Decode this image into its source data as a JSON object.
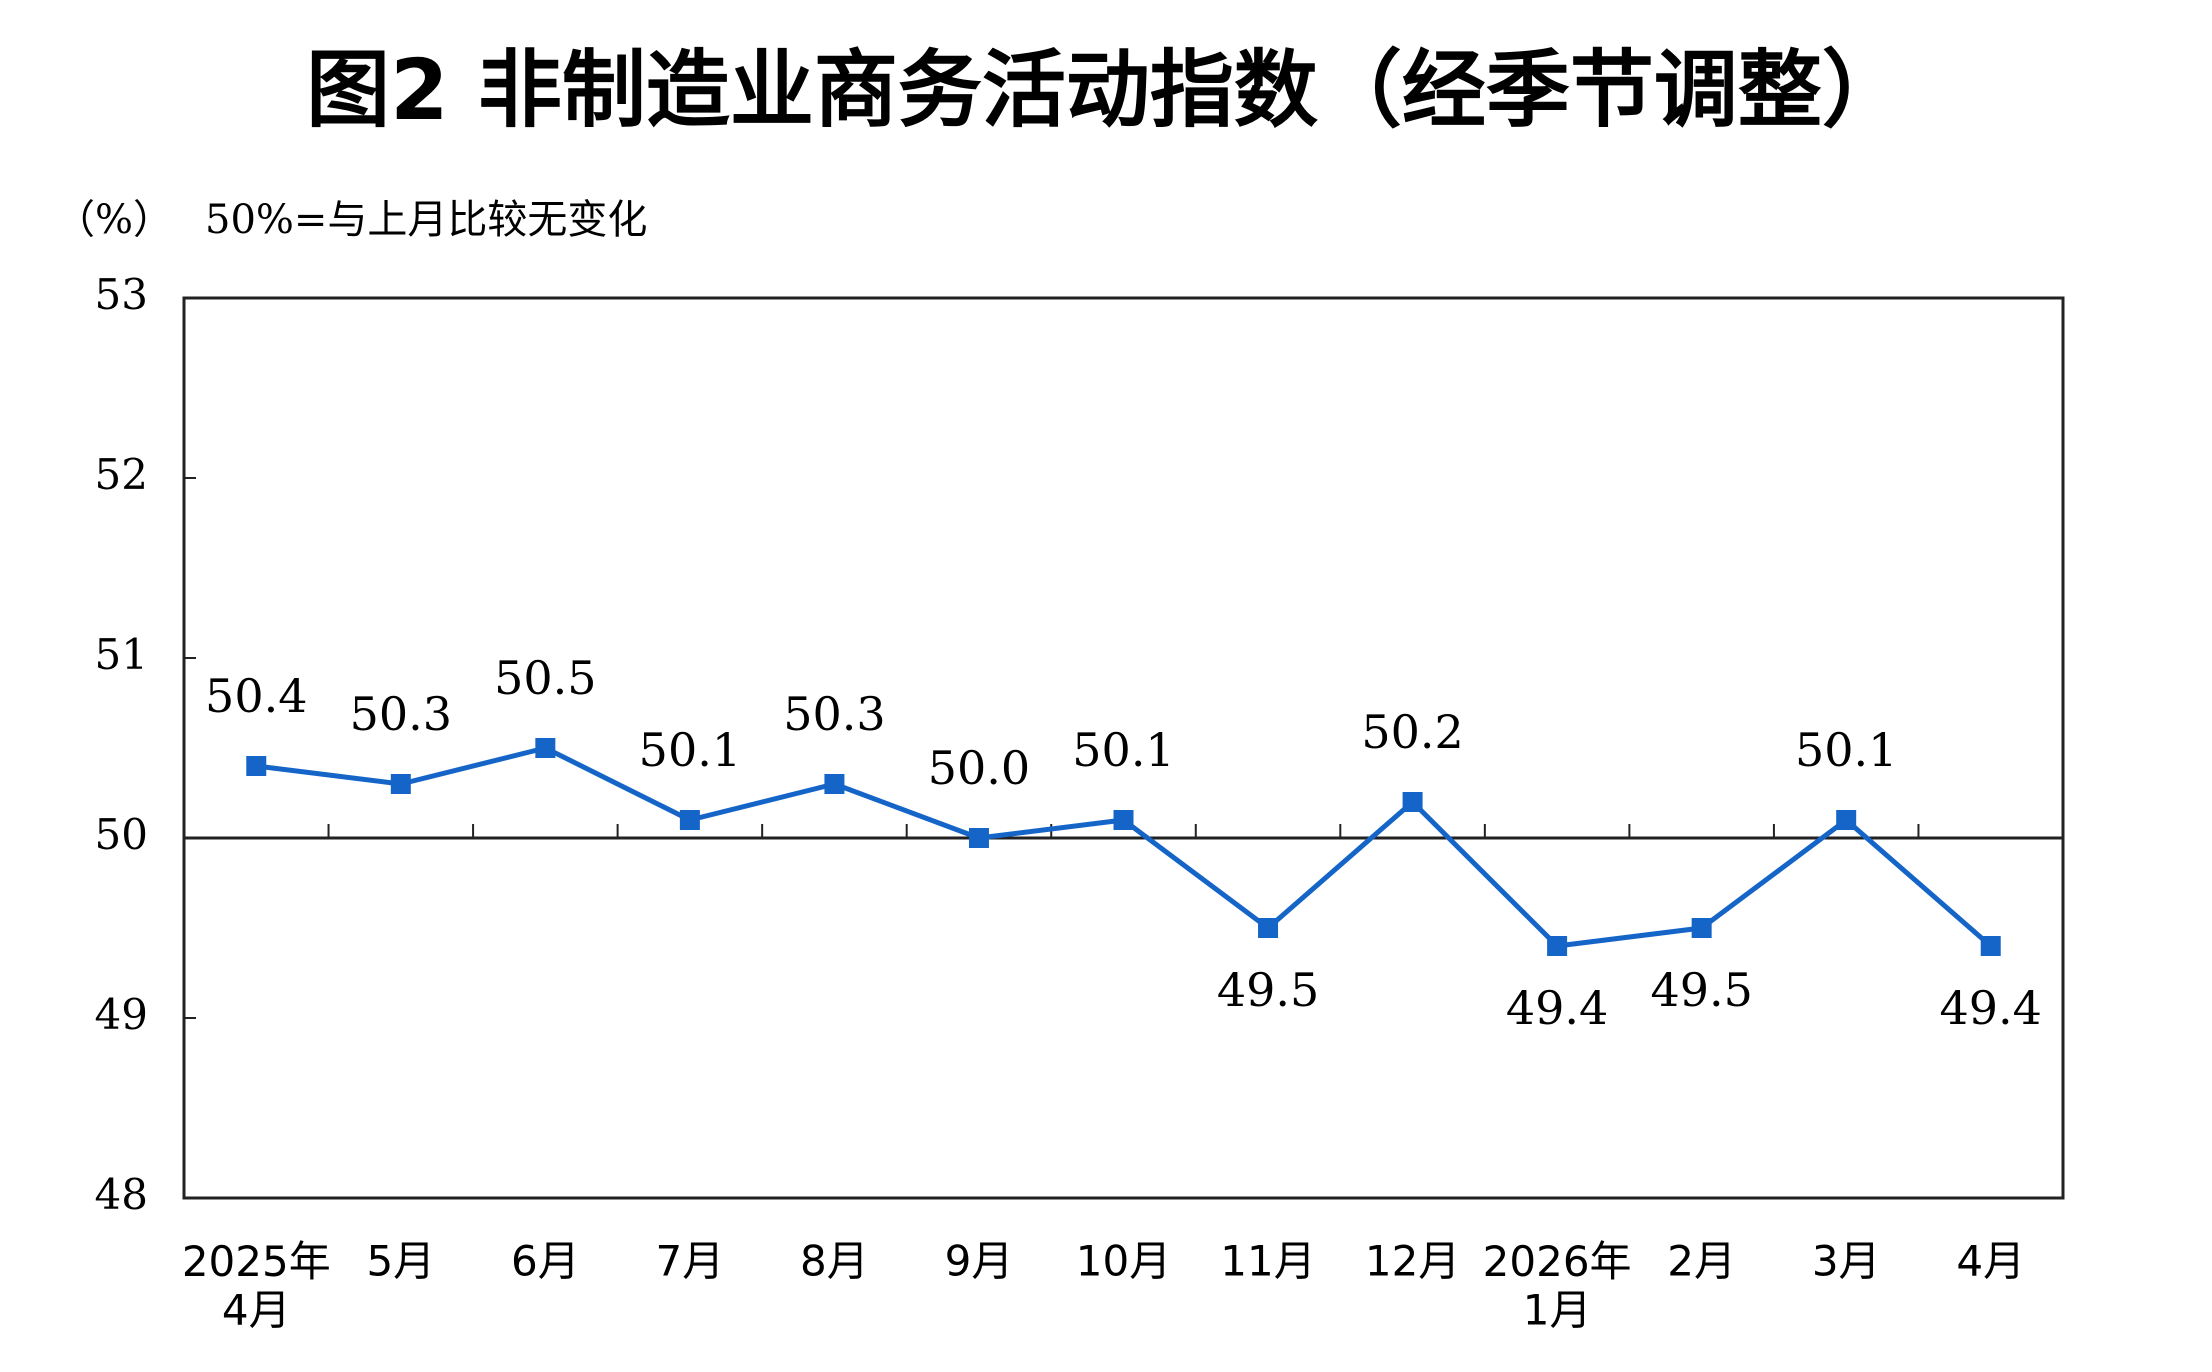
{
  "chart_data": {
    "type": "line",
    "title": "图2  非制造业商务活动指数（经季节调整）",
    "y_label": "（%）",
    "note": "50%=与上月比较无变化",
    "categories": [
      "2025年\n4月",
      "5月",
      "6月",
      "7月",
      "8月",
      "9月",
      "10月",
      "11月",
      "12月",
      "2026年\n1月",
      "2月",
      "3月",
      "4月"
    ],
    "series": [
      {
        "name": "非制造业商务活动指数",
        "color": "#1565c8",
        "values": [
          50.4,
          50.3,
          50.5,
          50.1,
          50.3,
          50.0,
          50.1,
          49.5,
          50.2,
          49.4,
          49.5,
          50.1,
          49.4
        ],
        "value_labels": [
          "50.4",
          "50.3",
          "50.5",
          "50.1",
          "50.3",
          "50.0",
          "50.1",
          "49.5",
          "50.2",
          "49.4",
          "49.5",
          "50.1",
          "49.4"
        ]
      }
    ],
    "ylim": [
      48,
      53
    ],
    "yticks": [
      48,
      49,
      50,
      51,
      52,
      53
    ],
    "reference_line": 50
  }
}
